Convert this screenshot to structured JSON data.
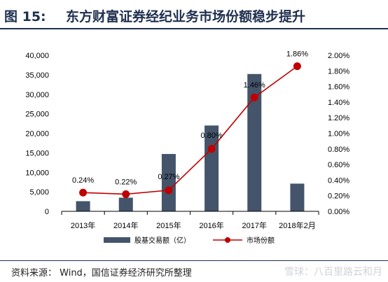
{
  "figure": {
    "label": "图 15:",
    "title": "东方财富证券经纪业务市场份额稳步提升"
  },
  "source": "资料来源： Wind，国信证券经济研究所整理",
  "watermark": "雪球：八百里路云和月",
  "colors": {
    "bar": "#44546a",
    "line": "#c00000",
    "header": "#1f2f4f"
  },
  "chart_data": {
    "type": "bar+line",
    "categories": [
      "2013年",
      "2014年",
      "2015年",
      "2016年",
      "2017年",
      "2018年2月"
    ],
    "series": [
      {
        "name": "股基交易额（亿）",
        "type": "bar",
        "axis": "left",
        "values": [
          2600,
          3500,
          14700,
          22000,
          35200,
          7100
        ]
      },
      {
        "name": "市场份额",
        "type": "line",
        "axis": "right",
        "values": [
          0.24,
          0.22,
          0.27,
          0.8,
          1.46,
          1.86
        ],
        "data_labels": [
          "0.24%",
          "0.22%",
          "0.27%",
          "0.80%",
          "1.46%",
          "1.86%"
        ]
      }
    ],
    "y_left": {
      "range": [
        0,
        40000
      ],
      "ticks": [
        "0",
        "5,000",
        "10,000",
        "15,000",
        "20,000",
        "25,000",
        "30,000",
        "35,000",
        "40,000"
      ]
    },
    "y_right": {
      "range": [
        0,
        2.0
      ],
      "ticks": [
        "0.00%",
        "0.20%",
        "0.40%",
        "0.60%",
        "0.80%",
        "1.00%",
        "1.20%",
        "1.40%",
        "1.60%",
        "1.80%",
        "2.00%"
      ]
    },
    "grid": false,
    "legend_position": "bottom"
  }
}
